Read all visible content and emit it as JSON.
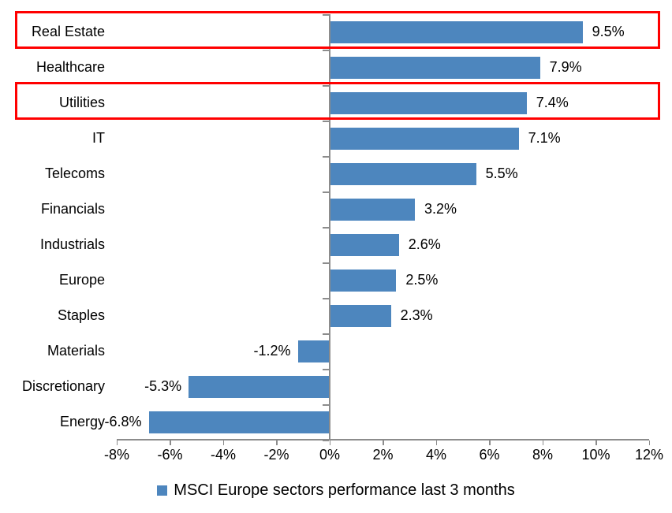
{
  "chart_data": {
    "type": "bar",
    "orientation": "horizontal",
    "title": "",
    "categories": [
      "Real Estate",
      "Healthcare",
      "Utilities",
      "IT",
      "Telecoms",
      "Financials",
      "Industrials",
      "Europe",
      "Staples",
      "Materials",
      "Discretionary",
      "Energy"
    ],
    "values": [
      9.5,
      7.9,
      7.4,
      7.1,
      5.5,
      3.2,
      2.6,
      2.5,
      2.3,
      -1.2,
      -5.3,
      -6.8
    ],
    "data_labels": [
      "9.5%",
      "7.9%",
      "7.4%",
      "7.1%",
      "5.5%",
      "3.2%",
      "2.6%",
      "2.5%",
      "2.3%",
      "-1.2%",
      "-5.3%",
      "-6.8%"
    ],
    "x_ticks": [
      "-8%",
      "-6%",
      "-4%",
      "-2%",
      "0%",
      "2%",
      "4%",
      "6%",
      "8%",
      "10%",
      "12%"
    ],
    "xlim": [
      -8,
      12
    ],
    "ylabel": "",
    "xlabel": "",
    "grid": false,
    "legend": {
      "label": "MSCI Europe sectors performance last 3 months",
      "position": "bottom"
    },
    "colors": {
      "bar": "#4D86BE",
      "axis": "#8C8C8C",
      "text": "#000000",
      "highlight_border": "#FF0000"
    },
    "highlighted_categories": [
      "Real Estate",
      "Utilities"
    ]
  }
}
